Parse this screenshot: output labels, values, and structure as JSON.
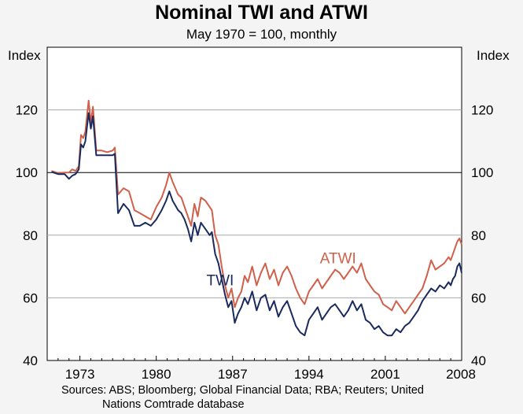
{
  "chart_data": {
    "type": "line",
    "title": "Nominal TWI and ATWI",
    "subtitle": "May 1970 = 100, monthly",
    "ylabel_left": "Index",
    "ylabel_right": "Index",
    "ylim": [
      40,
      140
    ],
    "yticks": [
      40,
      60,
      80,
      100,
      120
    ],
    "xlim": [
      1970,
      2008
    ],
    "xticks": [
      "1973",
      "1980",
      "1987",
      "1994",
      "2001",
      "2008"
    ],
    "xtick_values": [
      1973,
      1980,
      1987,
      1994,
      2001,
      2008
    ],
    "reference_line": 100,
    "series": [
      {
        "name": "ATWI",
        "color": "#d0604a",
        "x": [
          1970.4,
          1971,
          1971.6,
          1972,
          1972.3,
          1972.6,
          1972.9,
          1973.1,
          1973.3,
          1973.5,
          1973.8,
          1974.0,
          1974.2,
          1974.5,
          1975,
          1975.5,
          1976.0,
          1976.2,
          1976.5,
          1977,
          1977.5,
          1978,
          1978.5,
          1979,
          1979.5,
          1980,
          1980.5,
          1980.9,
          1981.2,
          1981.5,
          1982,
          1982.3,
          1982.6,
          1982.9,
          1983.2,
          1983.5,
          1983.8,
          1984.1,
          1984.5,
          1984.9,
          1985.1,
          1985.4,
          1985.7,
          1986.0,
          1986.3,
          1986.6,
          1986.9,
          1987.2,
          1987.5,
          1987.8,
          1988.1,
          1988.4,
          1988.8,
          1989.2,
          1989.6,
          1990.0,
          1990.4,
          1990.8,
          1991.2,
          1991.6,
          1992.0,
          1992.4,
          1992.8,
          1993.2,
          1993.6,
          1994.0,
          1994.4,
          1994.8,
          1995.2,
          1995.6,
          1996.0,
          1996.4,
          1996.8,
          1997.2,
          1997.6,
          1998.0,
          1998.4,
          1998.8,
          1999.2,
          1999.6,
          2000.0,
          2000.4,
          2000.8,
          2001.2,
          2001.6,
          2002.0,
          2002.4,
          2002.8,
          2003.2,
          2003.6,
          2004.0,
          2004.4,
          2004.8,
          2005.2,
          2005.6,
          2006.0,
          2006.4,
          2006.8,
          2007.0,
          2007.2,
          2007.4,
          2007.6,
          2007.8,
          2008.0
        ],
        "values": [
          100.5,
          99.8,
          100,
          100,
          101,
          100.5,
          102,
          112,
          111,
          113,
          123,
          116,
          121,
          107,
          107,
          106.5,
          107,
          108,
          93,
          95,
          94,
          88,
          87,
          86,
          85,
          89,
          92,
          96,
          100,
          97,
          93,
          92,
          89,
          86,
          83,
          90,
          86,
          92,
          91,
          89,
          88,
          80,
          77,
          70,
          64,
          60,
          63,
          57,
          60,
          62,
          67,
          65,
          70,
          64,
          68,
          71,
          66,
          69,
          64,
          68,
          70,
          67,
          63,
          60,
          58,
          62,
          64,
          66,
          63,
          65,
          67,
          69,
          68,
          66,
          68,
          70,
          68,
          71,
          66,
          64,
          62,
          61,
          58,
          57,
          56,
          59,
          57,
          55,
          57,
          59,
          61,
          63,
          67,
          72,
          69,
          70,
          71,
          73,
          72,
          74,
          76,
          78,
          79,
          77
        ]
      },
      {
        "name": "TWI",
        "color": "#1a2a5e",
        "x": [
          1970.4,
          1971,
          1971.6,
          1972,
          1972.3,
          1972.6,
          1972.9,
          1973.1,
          1973.3,
          1973.5,
          1973.8,
          1974.0,
          1974.2,
          1974.5,
          1975,
          1975.5,
          1976.0,
          1976.2,
          1976.5,
          1977,
          1977.5,
          1978,
          1978.5,
          1979,
          1979.5,
          1980,
          1980.5,
          1980.9,
          1981.2,
          1981.5,
          1982,
          1982.3,
          1982.6,
          1982.9,
          1983.2,
          1983.5,
          1983.8,
          1984.1,
          1984.5,
          1984.9,
          1985.1,
          1985.4,
          1985.7,
          1986.0,
          1986.3,
          1986.6,
          1986.9,
          1987.2,
          1987.5,
          1987.8,
          1988.1,
          1988.4,
          1988.8,
          1989.2,
          1989.6,
          1990.0,
          1990.4,
          1990.8,
          1991.2,
          1991.6,
          1992.0,
          1992.4,
          1992.8,
          1993.2,
          1993.6,
          1994.0,
          1994.4,
          1994.8,
          1995.2,
          1995.6,
          1996.0,
          1996.4,
          1996.8,
          1997.2,
          1997.6,
          1998.0,
          1998.4,
          1998.8,
          1999.2,
          1999.6,
          2000.0,
          2000.4,
          2000.8,
          2001.2,
          2001.6,
          2002.0,
          2002.4,
          2002.8,
          2003.2,
          2003.6,
          2004.0,
          2004.4,
          2004.8,
          2005.2,
          2005.6,
          2006.0,
          2006.4,
          2006.8,
          2007.0,
          2007.2,
          2007.4,
          2007.6,
          2007.8,
          2008.0
        ],
        "values": [
          100.2,
          99.5,
          99.5,
          98,
          99,
          99.5,
          101,
          109,
          108,
          110,
          119,
          114,
          118,
          105.5,
          105.5,
          105.5,
          105.5,
          106,
          87,
          90,
          88,
          83,
          83,
          84,
          83,
          85,
          88,
          91,
          94,
          91,
          88,
          87,
          85,
          82,
          78,
          84,
          80,
          84,
          82,
          80,
          81,
          74,
          71,
          66,
          61,
          57,
          59,
          52,
          55,
          57,
          60,
          58,
          62,
          56,
          60,
          61,
          56,
          59,
          54,
          57,
          59,
          55,
          51,
          49,
          48,
          53,
          55,
          57,
          53,
          55,
          57,
          58,
          56,
          54,
          56,
          59,
          56,
          58,
          53,
          52,
          50,
          51,
          49,
          48,
          48,
          50,
          49,
          51,
          52,
          54,
          56,
          59,
          61,
          63,
          62,
          64,
          63,
          65,
          64,
          66,
          67,
          70,
          71,
          68
        ]
      }
    ],
    "annotations": [
      {
        "text": "ATWI",
        "series": "ATWI",
        "x": 1995.0,
        "y": 71
      },
      {
        "text": "TWI",
        "series": "TWI",
        "x": 1984.6,
        "y": 64
      }
    ]
  },
  "sources_line1": "Sources: ABS; Bloomberg; Global Financial Data; RBA; Reuters; United",
  "sources_line2": "Nations Comtrade database"
}
